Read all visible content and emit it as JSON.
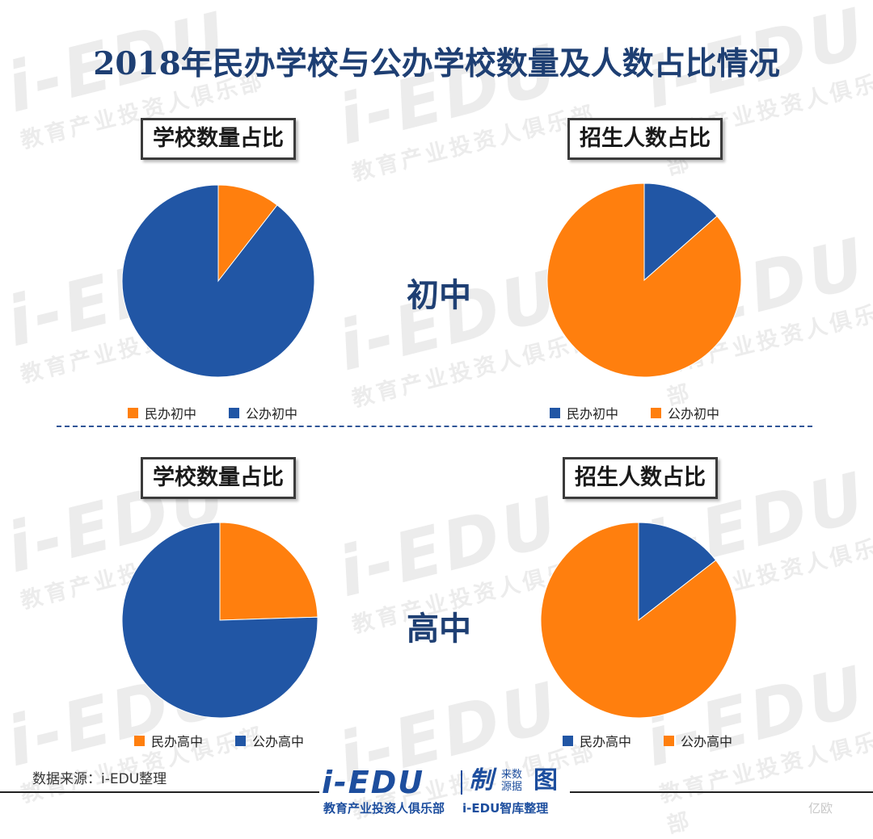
{
  "title": "2018年民办学校与公办学校数量及人数占比情况",
  "colors": {
    "orange": "#ff7f0e",
    "blue": "#2156a5",
    "title": "#1e3f73"
  },
  "watermark": {
    "big": "i-EDU",
    "small": "教育产业投资人俱乐部"
  },
  "rows": [
    {
      "label": "初中"
    },
    {
      "label": "高中"
    }
  ],
  "chart_data": [
    {
      "type": "pie",
      "title": "学校数量占比",
      "group": "初中",
      "slices": [
        {
          "label": "民办初中",
          "value": 10.5,
          "color": "#ff7f0e"
        },
        {
          "label": "公办初中",
          "value": 89.5,
          "color": "#2156a5"
        }
      ],
      "legend": [
        {
          "label": "民办初中",
          "color": "#ff7f0e"
        },
        {
          "label": "公办初中",
          "color": "#2156a5"
        }
      ],
      "legend_position": "bottom"
    },
    {
      "type": "pie",
      "title": "招生人数占比",
      "group": "初中",
      "slices": [
        {
          "label": "民办初中",
          "value": 13.5,
          "color": "#2156a5"
        },
        {
          "label": "公办初中",
          "value": 86.5,
          "color": "#ff7f0e"
        }
      ],
      "legend": [
        {
          "label": "民办初中",
          "color": "#2156a5"
        },
        {
          "label": "公办初中",
          "color": "#ff7f0e"
        }
      ],
      "legend_position": "bottom"
    },
    {
      "type": "pie",
      "title": "学校数量占比",
      "group": "高中",
      "slices": [
        {
          "label": "民办高中",
          "value": 24.5,
          "color": "#ff7f0e"
        },
        {
          "label": "公办高中",
          "value": 75.5,
          "color": "#2156a5"
        }
      ],
      "legend": [
        {
          "label": "民办高中",
          "color": "#ff7f0e"
        },
        {
          "label": "公办高中",
          "color": "#2156a5"
        }
      ],
      "legend_position": "bottom"
    },
    {
      "type": "pie",
      "title": "招生人数占比",
      "group": "高中",
      "slices": [
        {
          "label": "民办高中",
          "value": 14.5,
          "color": "#2156a5"
        },
        {
          "label": "公办高中",
          "value": 85.5,
          "color": "#ff7f0e"
        }
      ],
      "legend": [
        {
          "label": "民办高中",
          "color": "#2156a5"
        },
        {
          "label": "公办高中",
          "color": "#ff7f0e"
        }
      ],
      "legend_position": "bottom"
    }
  ],
  "source": "数据来源：i-EDU整理",
  "footer": {
    "logo_main": "i-EDU",
    "logo_zhi": "制",
    "logo_datasrc": "来数源据",
    "logo_tu": "图",
    "logo_sub1": "教育产业投资人俱乐部",
    "logo_sub2": "i-EDU智库整理"
  },
  "corner_mark": "亿欧"
}
